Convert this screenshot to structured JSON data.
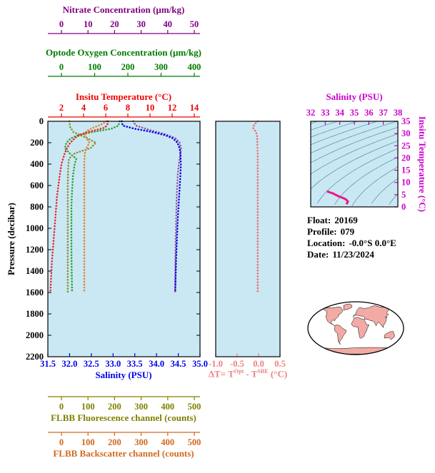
{
  "titles": {
    "nitrate": "Nitrate Concentration (µm/kg)",
    "oxygen": "Optode Oxygen Concentration (µm/kg)",
    "temperature": "Insitu Temperature (°C)",
    "pressure": "Pressure (decibar)",
    "salinity": "Salinity (PSU)",
    "fluorescence": "FLBB Fluorescence channel (counts)",
    "backscatter": "FLBB Backscatter channel (counts)",
    "delta": {
      "prefix": "ΔT= T",
      "sup1": "Opt",
      "mid": " - T",
      "sup2": "SBE",
      "suffix": " (°C)"
    },
    "ts_salinity": "Salinity (PSU)",
    "ts_temperature": "Insitu Temperature (°C)"
  },
  "info": {
    "float_label": "Float:",
    "float_value": "20169",
    "profile_label": "Profile:",
    "profile_value": "079",
    "location_label": "Location:",
    "location_value": "-0.0°S  0.0°E",
    "date_label": "Date:",
    "date_value": "11/23/2024"
  },
  "colors": {
    "nitrate": "#800080",
    "oxygen": "#007A00",
    "temperature": "#EE0000",
    "pressure": "#000000",
    "salinity": "#0000EE",
    "fluorescence": "#808000",
    "backscatter": "#D2691E",
    "delta_t": "#F08080",
    "ts": "#CC00CC",
    "plot_bg": "#C9E8F4",
    "frame": "#000000",
    "isopycnal": "#4E8FA0",
    "map_land": "#F2ABA4",
    "map_outline": "#000000"
  },
  "chart_data": {
    "type": "line",
    "panels": {
      "profiles": {
        "description": "Vertical profiles versus pressure, multiple shared-x axes",
        "y_axis": {
          "label": "Pressure (decibar)",
          "range": [
            0,
            2200
          ],
          "ticks": [
            "0",
            "200",
            "400",
            "600",
            "800",
            "1000",
            "1200",
            "1400",
            "1600",
            "1800",
            "2000",
            "2200"
          ]
        },
        "x_axes": {
          "nitrate": {
            "label": "Nitrate Concentration (µm/kg)",
            "range": [
              0,
              50
            ],
            "ticks": [
              "0",
              "10",
              "20",
              "30",
              "40",
              "50"
            ],
            "position": "top"
          },
          "oxygen": {
            "label": "Optode Oxygen Concentration (µm/kg)",
            "range": [
              0,
              400
            ],
            "ticks": [
              "0",
              "100",
              "200",
              "300",
              "400"
            ],
            "position": "top"
          },
          "temperature": {
            "label": "Insitu Temperature (°C)",
            "range": [
              2,
              14
            ],
            "ticks": [
              "2",
              "4",
              "6",
              "8",
              "10",
              "12",
              "14"
            ],
            "position": "top"
          },
          "salinity": {
            "label": "Salinity (PSU)",
            "range": [
              31.5,
              35.0
            ],
            "ticks": [
              "31.5",
              "32.0",
              "32.5",
              "33.0",
              "33.5",
              "34.0",
              "34.5",
              "35.0"
            ],
            "position": "bottom"
          },
          "fluorescence": {
            "label": "FLBB Fluorescence channel (counts)",
            "range": [
              0,
              500
            ],
            "ticks": [
              "0",
              "100",
              "200",
              "300",
              "400",
              "500"
            ],
            "position": "bottom"
          },
          "backscatter": {
            "label": "FLBB Backscatter channel (counts)",
            "range": [
              0,
              500
            ],
            "ticks": [
              "0",
              "100",
              "200",
              "300",
              "400",
              "500"
            ],
            "position": "bottom"
          }
        },
        "series": [
          {
            "name": "nitrate",
            "axis": "nitrate",
            "color": "#A050A0",
            "pressure": [
              0,
              40,
              80,
              120,
              160,
              200,
              250,
              300,
              400,
              500,
              700,
              900,
              1100,
              1300,
              1600
            ],
            "values": [
              27,
              28,
              33,
              39,
              43,
              44.5,
              45,
              44.8,
              44.2,
              43.8,
              43.4,
              43.2,
              43,
              42.9,
              42.8
            ]
          },
          {
            "name": "oxygen",
            "axis": "oxygen",
            "color": "#2FA32F",
            "pressure": [
              0,
              40,
              70,
              100,
              130,
              160,
              200,
              250,
              300,
              350,
              400,
              500,
              650,
              800,
              1000,
              1200,
              1400,
              1600
            ],
            "values": [
              175,
              172,
              150,
              95,
              50,
              28,
              15,
              10,
              25,
              45,
              40,
              35,
              32,
              30,
              30,
              30,
              31,
              32
            ]
          },
          {
            "name": "fluorescence",
            "axis": "fluorescence",
            "color": "#8F8F30",
            "pressure": [
              0,
              50,
              100,
              150,
              200,
              250,
              300,
              350,
              450,
              600,
              900,
              1200,
              1600
            ],
            "values": [
              30,
              32,
              45,
              90,
              130,
              110,
              50,
              28,
              25,
              24,
              24,
              24,
              24
            ]
          },
          {
            "name": "backscatter",
            "axis": "backscatter",
            "color": "#E6842D",
            "pressure": [
              0,
              30,
              60,
              90,
              120,
              160,
              200,
              250,
              300,
              400,
              600,
              900,
              1200,
              1600
            ],
            "values": [
              170,
              150,
              120,
              95,
              88,
              95,
              105,
              95,
              88,
              86,
              86,
              86,
              86,
              86
            ]
          },
          {
            "name": "temperature",
            "axis": "temperature",
            "color": "#EE2222",
            "pressure": [
              0,
              20,
              40,
              60,
              80,
              100,
              120,
              150,
              200,
              250,
              300,
              400,
              500,
              700,
              900,
              1100,
              1300,
              1600
            ],
            "values": [
              6.2,
              6.2,
              6.1,
              5.9,
              5.2,
              4.4,
              3.8,
              3.3,
              2.8,
              2.5,
              2.3,
              2.0,
              1.85,
              1.6,
              1.45,
              1.3,
              1.15,
              1.0
            ]
          },
          {
            "name": "salinity",
            "axis": "salinity",
            "color": "#0000EE",
            "pressure": [
              0,
              40,
              70,
              100,
              130,
              160,
              200,
              250,
              300,
              400,
              500,
              700,
              900,
              1100,
              1300,
              1600
            ],
            "values": [
              33.2,
              33.22,
              33.5,
              33.9,
              34.2,
              34.38,
              34.48,
              34.53,
              34.55,
              34.56,
              34.55,
              34.52,
              34.49,
              34.47,
              34.45,
              34.43
            ]
          }
        ]
      },
      "delta_t": {
        "x_axis": {
          "label": "ΔT= T(Opt) - T(SBE) (°C)",
          "range": [
            -1.0,
            0.5
          ],
          "ticks": [
            "-1.0",
            "-0.5",
            "0.0",
            "0.5"
          ],
          "position": "bottom"
        },
        "series": [
          {
            "name": "delta_t",
            "color": "#EE7070",
            "pressure": [
              0,
              30,
              60,
              90,
              120,
              160,
              200,
              300,
              400,
              600,
              800,
              1000,
              1200,
              1400,
              1600
            ],
            "values": [
              -0.02,
              -0.1,
              -0.13,
              -0.08,
              -0.04,
              -0.03,
              -0.03,
              -0.02,
              -0.02,
              -0.02,
              -0.02,
              -0.02,
              -0.02,
              -0.02,
              -0.02
            ]
          }
        ]
      },
      "ts": {
        "x_axis": {
          "label": "Salinity (PSU)",
          "range": [
            32,
            38
          ],
          "ticks": [
            "32",
            "33",
            "34",
            "35",
            "36",
            "37",
            "38"
          ],
          "position": "top"
        },
        "y_axis": {
          "label": "Insitu Temperature (°C)",
          "range": [
            0,
            35
          ],
          "ticks": [
            "0",
            "5",
            "10",
            "15",
            "20",
            "25",
            "30",
            "35"
          ],
          "position": "right"
        },
        "curve": {
          "name": "ts-curve",
          "color": "#EE1289",
          "salinity": [
            33.2,
            33.22,
            33.5,
            33.9,
            34.2,
            34.38,
            34.48,
            34.53,
            34.55,
            34.56,
            34.55,
            34.52,
            34.49,
            34.47,
            34.45,
            34.43
          ],
          "temperature": [
            6.2,
            6.1,
            5.6,
            4.4,
            3.7,
            3.2,
            2.8,
            2.5,
            2.3,
            2.0,
            1.85,
            1.6,
            1.45,
            1.3,
            1.15,
            1.0
          ]
        },
        "isopycnals": {
          "sigma_start": 18,
          "sigma_end": 31,
          "sigma_step": 1
        }
      }
    }
  }
}
